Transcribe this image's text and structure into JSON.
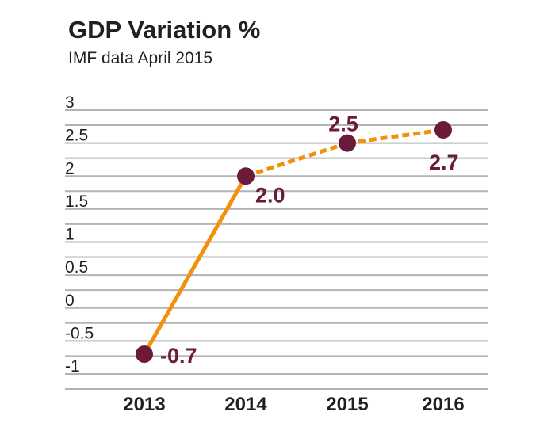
{
  "chart_data": {
    "type": "line",
    "title": "GDP Variation %",
    "subtitle": "IMF data April 2015",
    "xlabel": "",
    "ylabel": "",
    "x": [
      "2013",
      "2014",
      "2015",
      "2016"
    ],
    "values": [
      -0.7,
      2.0,
      2.5,
      2.7
    ],
    "data_labels": [
      "-0.7",
      "2.0",
      "2.5",
      "2.7"
    ],
    "segment_styles": [
      "solid",
      "dashed",
      "dashed"
    ],
    "yticks": [
      "3",
      "2.5",
      "2",
      "1.5",
      "1",
      "0.5",
      "0",
      "-0.5",
      "-1"
    ],
    "ytick_values": [
      3,
      2.5,
      2,
      1.5,
      1,
      0.5,
      0,
      -0.5,
      -1
    ],
    "ylim": [
      -1,
      3
    ],
    "grid": true,
    "legend": "none",
    "colors": {
      "line": "#f0920f",
      "marker": "#6b1a3a",
      "grid": "#b3b3b3",
      "label": "#6b1a3a",
      "text": "#231f20"
    }
  }
}
